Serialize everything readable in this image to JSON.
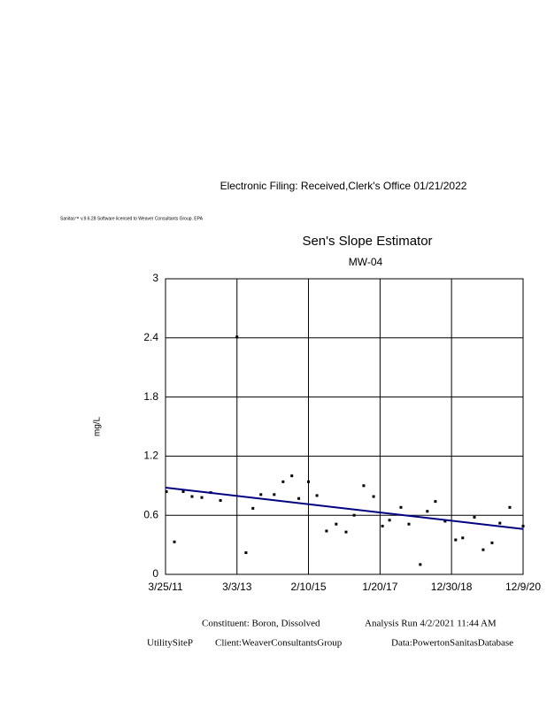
{
  "header": {
    "filing": "Electronic Filing: Received,Clerk's Office 01/21/2022",
    "license": "Sanitas™ v.9.6.28 Software licensed to Weaver Consultants Group. EPA"
  },
  "chart_data": {
    "type": "scatter",
    "title": "Sen's Slope Estimator",
    "subtitle": "MW-04",
    "y_label": "mg/L",
    "x": [
      "2011-04-03",
      "2011-06-21",
      "2011-09-17",
      "2011-12-13",
      "2012-03-19",
      "2012-06-16",
      "2012-09-20",
      "2013-03-03",
      "2013-05-31",
      "2013-08-08",
      "2013-10-26",
      "2014-03-07",
      "2014-06-03",
      "2014-08-29",
      "2014-11-06",
      "2015-02-10",
      "2015-05-05",
      "2015-08-08",
      "2015-11-12",
      "2016-02-18",
      "2016-05-08",
      "2016-08-11",
      "2016-11-17",
      "2017-02-13",
      "2017-04-24",
      "2017-08-15",
      "2017-11-02",
      "2018-02-23",
      "2018-05-04",
      "2018-07-23",
      "2018-10-27",
      "2019-02-09",
      "2019-04-20",
      "2019-08-14",
      "2019-11-09",
      "2020-02-05",
      "2020-04-23",
      "2020-07-30",
      "2020-12-09"
    ],
    "values": [
      0.84,
      0.33,
      0.84,
      0.79,
      0.78,
      0.83,
      0.75,
      2.41,
      0.22,
      0.67,
      0.81,
      0.81,
      0.94,
      1.0,
      0.77,
      0.94,
      0.8,
      0.44,
      0.51,
      0.43,
      0.6,
      0.9,
      0.79,
      0.49,
      0.55,
      0.68,
      0.51,
      0.1,
      0.64,
      0.74,
      0.54,
      0.35,
      0.37,
      0.58,
      0.25,
      0.32,
      0.52,
      0.68,
      0.49
    ],
    "color": "#000000",
    "trend": {
      "x": [
        "2011-03-25",
        "2020-12-09"
      ],
      "values": [
        0.88,
        0.46
      ],
      "color": "#000080"
    },
    "xlim": [
      "2011-03-25",
      "2020-12-09"
    ],
    "xticks": [
      {
        "value": "2011-03-25",
        "label": "3/25/11"
      },
      {
        "value": "2013-03-03",
        "label": "3/3/13"
      },
      {
        "value": "2015-02-10",
        "label": "2/10/15"
      },
      {
        "value": "2017-01-20",
        "label": "1/20/17"
      },
      {
        "value": "2018-12-30",
        "label": "12/30/18"
      },
      {
        "value": "2020-12-09",
        "label": "12/9/20"
      }
    ],
    "ylim": [
      0,
      3
    ],
    "yticks": [
      0,
      0.6,
      1.2,
      1.8,
      2.4,
      3
    ],
    "grid": true
  },
  "footer": {
    "constituent": "Constituent: Boron, Dissolved",
    "analysis": "Analysis Run 4/2/2021 11:44 AM",
    "site": "UtilitySiteP",
    "client": "Client:WeaverConsultantsGroup",
    "database": "Data:PowertonSanitasDatabase"
  }
}
